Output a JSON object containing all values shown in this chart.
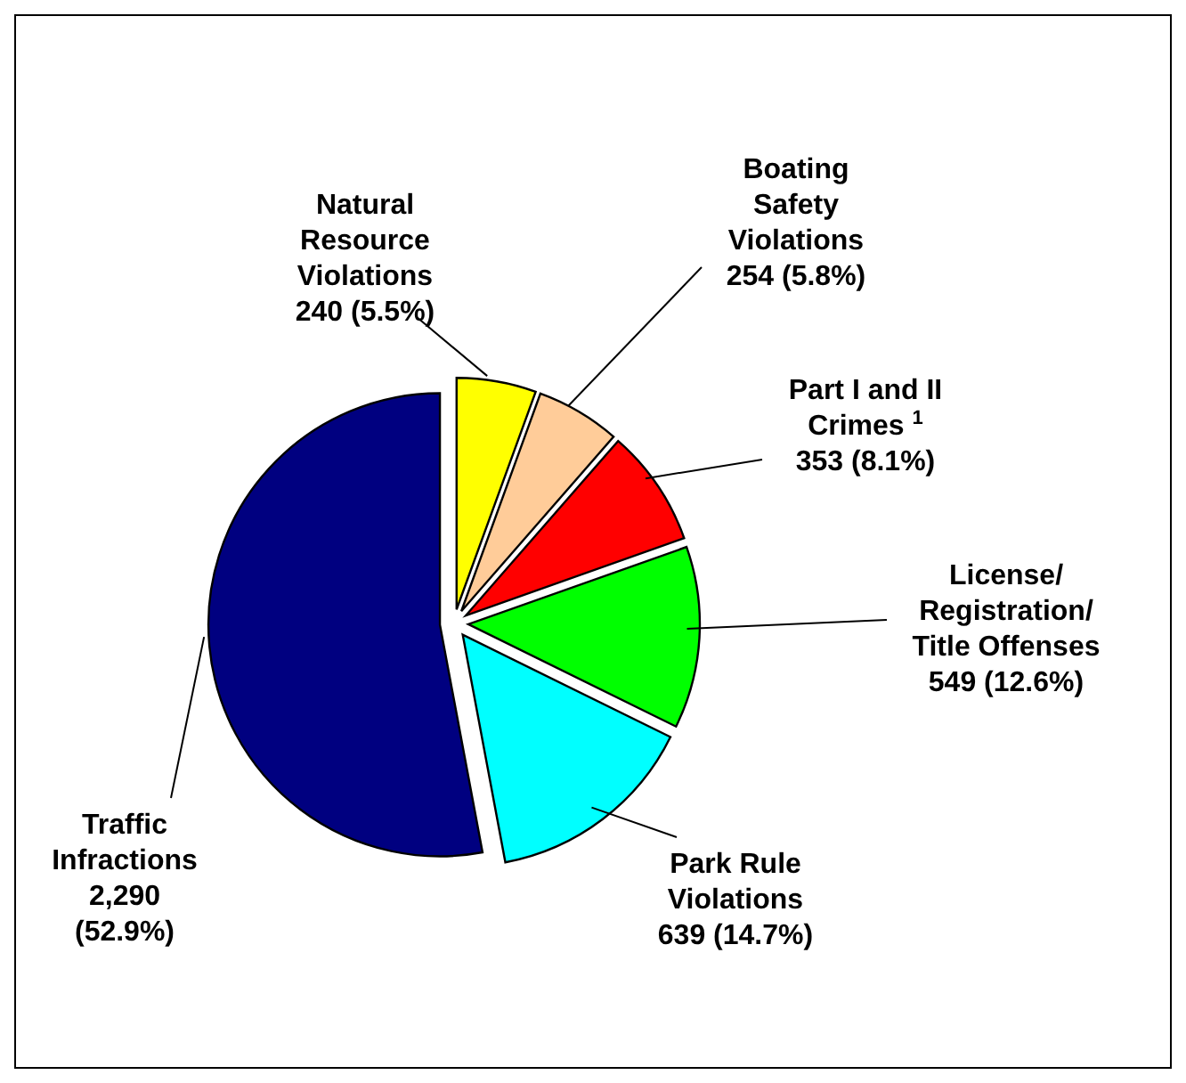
{
  "chart_data": {
    "type": "pie",
    "categories": [
      "Natural Resource Violations",
      "Boating Safety Violations",
      "Part I and II Crimes $^{1}$",
      "License/ Registration/ Title Offenses",
      "Park Rule Violations",
      "Traffic Infractions"
    ],
    "values": [
      240,
      254,
      353,
      549,
      639,
      2290
    ],
    "colors": [
      "#ffff00",
      "#ffcc99",
      "#ff0000",
      "#00ff00",
      "#00ffff",
      "#000080"
    ],
    "value_labels": [
      "240 (5.5%)",
      "254 (5.8%)",
      "353 (8.1%)",
      "549 (12.6%)",
      "639 (14.7%)",
      "2,290 (52.9%)"
    ]
  }
}
